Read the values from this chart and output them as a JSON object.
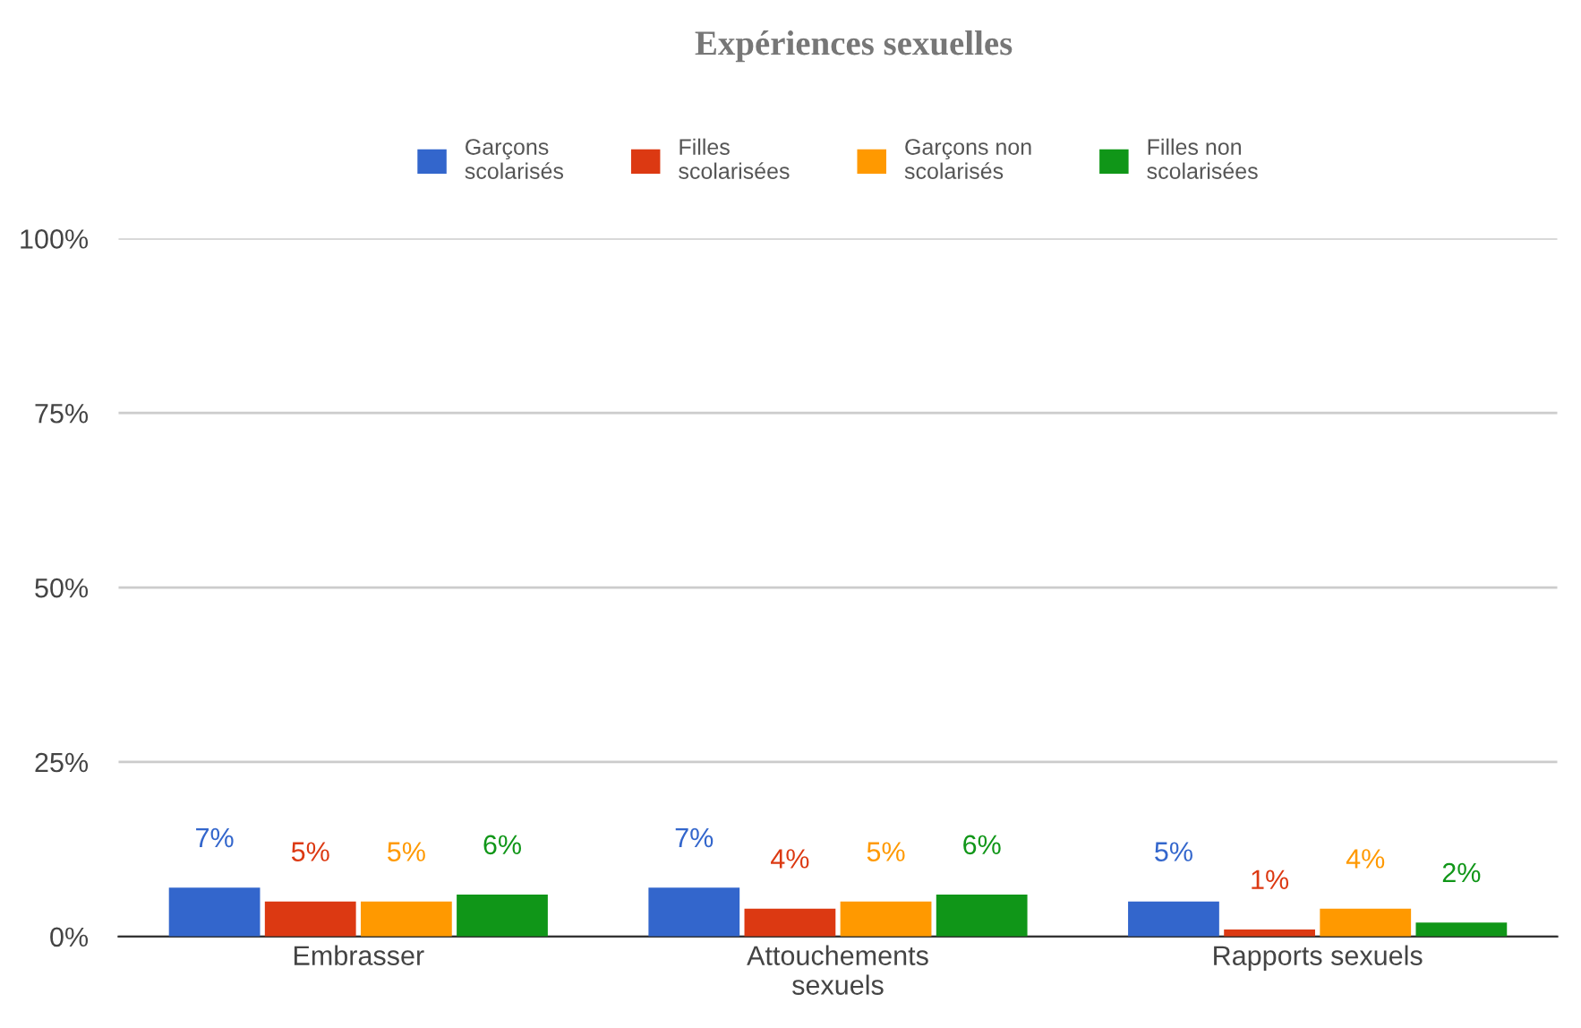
{
  "chart_data": {
    "type": "bar",
    "title": "Expériences sexuelles",
    "categories": [
      "Embrasser",
      "Attouchements\nsexuels",
      "Rapports sexuels"
    ],
    "series": [
      {
        "name": "Garçons\nscolarisés",
        "color": "#3366cc",
        "values": [
          7,
          7,
          5
        ],
        "value_labels": [
          "7%",
          "7%",
          "5%"
        ]
      },
      {
        "name": "Filles\nscolarisées",
        "color": "#dc3912",
        "values": [
          5,
          4,
          1
        ],
        "value_labels": [
          "5%",
          "4%",
          "1%"
        ]
      },
      {
        "name": "Garçons non\nscolarisés",
        "color": "#ff9900",
        "values": [
          5,
          5,
          4
        ],
        "value_labels": [
          "5%",
          "5%",
          "4%"
        ]
      },
      {
        "name": "Filles non\nscolarisées",
        "color": "#109618",
        "values": [
          6,
          6,
          2
        ],
        "value_labels": [
          "6%",
          "6%",
          "2%"
        ]
      }
    ],
    "ylim": [
      0,
      100
    ],
    "yticks": [
      {
        "value": 0,
        "label": "0%"
      },
      {
        "value": 25,
        "label": "25%"
      },
      {
        "value": 50,
        "label": "50%"
      },
      {
        "value": 75,
        "label": "75%"
      },
      {
        "value": 100,
        "label": "100%"
      }
    ],
    "grid": "y",
    "legend": "top"
  }
}
